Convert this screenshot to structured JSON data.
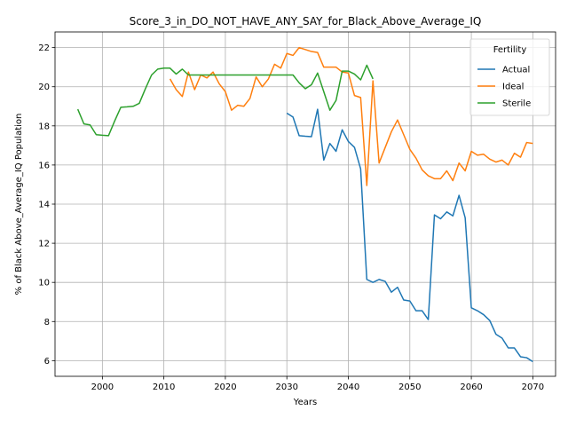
{
  "chart_data": {
    "type": "line",
    "title": "Score_3_in_DO_NOT_HAVE_ANY_SAY_for_Black_Above_Average_IQ",
    "xlabel": "Years",
    "ylabel": "% of Black Above_Average_IQ Population",
    "xlim": [
      1992.3,
      2073.7
    ],
    "ylim": [
      5.2,
      22.8
    ],
    "xticks": [
      2000,
      2010,
      2020,
      2030,
      2040,
      2050,
      2060,
      2070
    ],
    "yticks": [
      6,
      8,
      10,
      12,
      14,
      16,
      18,
      20,
      22
    ],
    "grid": true,
    "legend": {
      "title": "Fertility",
      "position": "top-right"
    },
    "series": [
      {
        "name": "Actual",
        "color": "#1f77b4",
        "x": [
          2030,
          2031,
          2032,
          2033,
          2034,
          2035,
          2036,
          2037,
          2038,
          2039,
          2040,
          2041,
          2042,
          2043,
          2044,
          2045,
          2046,
          2047,
          2048,
          2049,
          2050,
          2051,
          2052,
          2053,
          2054,
          2055,
          2056,
          2057,
          2058,
          2059,
          2060,
          2061,
          2062,
          2063,
          2064,
          2065,
          2066,
          2067,
          2068,
          2069,
          2070
        ],
        "y": [
          18.65,
          18.45,
          17.5,
          17.47,
          17.45,
          18.85,
          16.25,
          17.1,
          16.7,
          17.8,
          17.2,
          16.9,
          15.8,
          10.15,
          10.0,
          10.15,
          10.05,
          9.5,
          9.75,
          9.1,
          9.05,
          8.55,
          8.55,
          8.1,
          13.45,
          13.25,
          13.6,
          13.4,
          14.45,
          13.3,
          8.7,
          8.55,
          8.35,
          8.05,
          7.35,
          7.15,
          6.65,
          6.65,
          6.2,
          6.15,
          5.95
        ]
      },
      {
        "name": "Ideal",
        "color": "#ff7f0e",
        "x": [
          2011,
          2012,
          2013,
          2014,
          2015,
          2016,
          2017,
          2018,
          2019,
          2020,
          2021,
          2022,
          2023,
          2024,
          2025,
          2026,
          2027,
          2028,
          2029,
          2030,
          2031,
          2032,
          2033,
          2034,
          2035,
          2036,
          2037,
          2038,
          2039,
          2040,
          2041,
          2042,
          2043,
          2044,
          2045,
          2046,
          2047,
          2048,
          2049,
          2050,
          2051,
          2052,
          2053,
          2054,
          2055,
          2056,
          2057,
          2058,
          2059,
          2060,
          2061,
          2062,
          2063,
          2064,
          2065,
          2066,
          2067,
          2068,
          2069,
          2070
        ],
        "y": [
          20.4,
          19.85,
          19.5,
          20.75,
          19.85,
          20.6,
          20.45,
          20.75,
          20.15,
          19.75,
          18.8,
          19.05,
          19.0,
          19.4,
          20.5,
          20.0,
          20.4,
          21.15,
          20.95,
          21.7,
          21.6,
          22.0,
          21.9,
          21.8,
          21.75,
          21.0,
          21.0,
          21.0,
          20.75,
          20.7,
          19.55,
          19.45,
          14.95,
          20.3,
          16.1,
          16.9,
          17.7,
          18.3,
          17.55,
          16.8,
          16.35,
          15.75,
          15.45,
          15.3,
          15.3,
          15.7,
          15.2,
          16.1,
          15.7,
          16.7,
          16.5,
          16.55,
          16.3,
          16.15,
          16.25,
          16.0,
          16.6,
          16.4,
          17.15,
          17.1
        ]
      },
      {
        "name": "Sterile",
        "color": "#2ca02c",
        "x": [
          1996,
          1997,
          1998,
          1999,
          2000,
          2001,
          2002,
          2003,
          2004,
          2005,
          2006,
          2007,
          2008,
          2009,
          2010,
          2011,
          2012,
          2013,
          2014,
          2015,
          2016,
          2017,
          2018,
          2019,
          2020,
          2021,
          2022,
          2023,
          2024,
          2025,
          2026,
          2027,
          2028,
          2029,
          2030,
          2031,
          2032,
          2033,
          2034,
          2035,
          2036,
          2037,
          2038,
          2039,
          2040,
          2041,
          2042,
          2043,
          2044
        ],
        "y": [
          18.85,
          18.1,
          18.05,
          17.55,
          17.52,
          17.5,
          18.25,
          18.95,
          18.97,
          19.0,
          19.15,
          19.9,
          20.6,
          20.9,
          20.95,
          20.95,
          20.65,
          20.9,
          20.6,
          20.6,
          20.6,
          20.6,
          20.6,
          20.6,
          20.6,
          20.6,
          20.6,
          20.6,
          20.6,
          20.6,
          20.6,
          20.6,
          20.6,
          20.6,
          20.6,
          20.6,
          20.2,
          19.9,
          20.1,
          20.7,
          19.75,
          18.8,
          19.3,
          20.8,
          20.8,
          20.65,
          20.35,
          21.1,
          20.4
        ]
      }
    ]
  }
}
